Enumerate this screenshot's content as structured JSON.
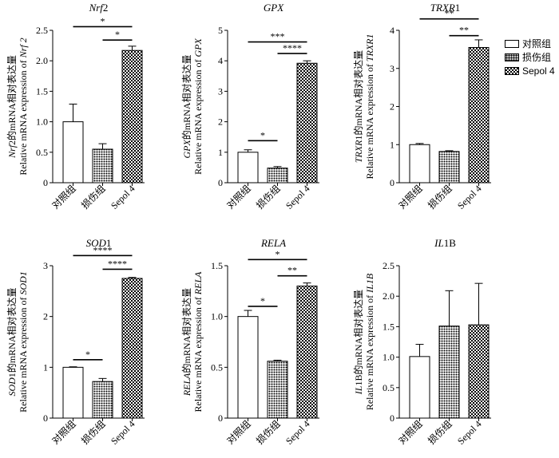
{
  "legend": {
    "items": [
      {
        "label": "对照组"
      },
      {
        "label": "损伤组"
      },
      {
        "label": "Sepol 4"
      }
    ]
  },
  "chart_data": [
    {
      "type": "bar",
      "title_italic": "Nrf",
      "title_plain": "2",
      "ylabel_line1_italic": "Nrf",
      "ylabel_line1_plain": "2的mRNA相对表达量",
      "ylabel_line2_plain": "Relative mRNA expression of ",
      "ylabel_line2_italic": "Nrf 2",
      "categories": [
        "对照组",
        "损伤组",
        "Sepol 4"
      ],
      "values": [
        1.0,
        0.55,
        2.17
      ],
      "errors": [
        0.29,
        0.09,
        0.07
      ],
      "ylim": [
        0,
        2.5
      ],
      "ytick_labels": [
        "0",
        "0.5",
        "1.0",
        "1.5",
        "2.0",
        "2.5"
      ],
      "significance": [
        {
          "from": 1,
          "to": 2,
          "y": 2.34,
          "label": "*"
        },
        {
          "from": 0,
          "to": 2,
          "y": 2.56,
          "label": "*"
        }
      ]
    },
    {
      "type": "bar",
      "title_italic": "GPX",
      "title_plain": "",
      "ylabel_line1_italic": "GPX",
      "ylabel_line1_plain": "的mRNA相对表达量",
      "ylabel_line2_plain": "Relative mRNA expression of ",
      "ylabel_line2_italic": "GPX",
      "categories": [
        "对照组",
        "损伤组",
        "Sepol 4"
      ],
      "values": [
        1.0,
        0.48,
        3.92
      ],
      "errors": [
        0.08,
        0.05,
        0.08
      ],
      "ylim": [
        0,
        5
      ],
      "ytick_labels": [
        "0",
        "1",
        "2",
        "3",
        "4",
        "5"
      ],
      "significance": [
        {
          "from": 0,
          "to": 1,
          "y": 1.38,
          "label": "*"
        },
        {
          "from": 1,
          "to": 2,
          "y": 4.24,
          "label": "****"
        },
        {
          "from": 0,
          "to": 2,
          "y": 4.62,
          "label": "***"
        }
      ]
    },
    {
      "type": "bar",
      "title_italic": "TRXR",
      "title_plain": "1",
      "ylabel_line1_italic": "TRXR",
      "ylabel_line1_plain": "1的mRNA相对表达量",
      "ylabel_line2_plain": "Relative mRNA expression of ",
      "ylabel_line2_italic": "TRXR1",
      "categories": [
        "对照组",
        "损伤组",
        "Sepol 4"
      ],
      "values": [
        1.0,
        0.82,
        3.55
      ],
      "errors": [
        0.03,
        0.02,
        0.2
      ],
      "ylim": [
        0,
        4
      ],
      "ytick_labels": [
        "0",
        "1",
        "2",
        "3",
        "4"
      ],
      "significance": [
        {
          "from": 1,
          "to": 2,
          "y": 3.86,
          "label": "**"
        },
        {
          "from": 0,
          "to": 2,
          "y": 4.3,
          "label": "**"
        }
      ]
    },
    {
      "type": "bar",
      "title_italic": "SOD",
      "title_plain": "1",
      "ylabel_line1_italic": "SOD",
      "ylabel_line1_plain": "1的mRNA相对表达量",
      "ylabel_line2_plain": "Relative mRNA expression of ",
      "ylabel_line2_italic": "SOD1",
      "categories": [
        "对照组",
        "损伤组",
        "Sepol 4"
      ],
      "values": [
        1.0,
        0.72,
        2.75
      ],
      "errors": [
        0.01,
        0.06,
        0.02
      ],
      "ylim": [
        0,
        3
      ],
      "ytick_labels": [
        "0",
        "1",
        "2",
        "3"
      ],
      "significance": [
        {
          "from": 0,
          "to": 1,
          "y": 1.15,
          "label": "*"
        },
        {
          "from": 1,
          "to": 2,
          "y": 2.93,
          "label": "****"
        },
        {
          "from": 0,
          "to": 2,
          "y": 3.2,
          "label": "****"
        }
      ]
    },
    {
      "type": "bar",
      "title_italic": "RELA",
      "title_plain": "",
      "ylabel_line1_italic": "RELA",
      "ylabel_line1_plain": "的mRNA相对表达量",
      "ylabel_line2_plain": "Relative mRNA expression of ",
      "ylabel_line2_italic": "RELA",
      "categories": [
        "对照组",
        "损伤组",
        "Sepol 4"
      ],
      "values": [
        1.0,
        0.56,
        1.3
      ],
      "errors": [
        0.06,
        0.01,
        0.03
      ],
      "ylim": [
        0,
        1.5
      ],
      "ytick_labels": [
        "0",
        "0.5",
        "1.0",
        "1.5"
      ],
      "significance": [
        {
          "from": 0,
          "to": 1,
          "y": 1.1,
          "label": "*"
        },
        {
          "from": 1,
          "to": 2,
          "y": 1.4,
          "label": "**"
        },
        {
          "from": 0,
          "to": 2,
          "y": 1.56,
          "label": "*"
        }
      ]
    },
    {
      "type": "bar",
      "title_italic": "IL",
      "title_plain": "1B",
      "ylabel_line1_italic": "IL",
      "ylabel_line1_plain": "1B的mRNA相对表达量",
      "ylabel_line2_plain": "Relative mRNA expression of ",
      "ylabel_line2_italic": "IL1B",
      "categories": [
        "对照组",
        "损伤组",
        "Sepol 4"
      ],
      "values": [
        1.01,
        1.51,
        1.53
      ],
      "errors": [
        0.2,
        0.58,
        0.68
      ],
      "ylim": [
        0,
        2.5
      ],
      "ytick_labels": [
        "0",
        "0.5",
        "1.0",
        "1.5",
        "2.0",
        "2.5"
      ],
      "significance": []
    }
  ]
}
